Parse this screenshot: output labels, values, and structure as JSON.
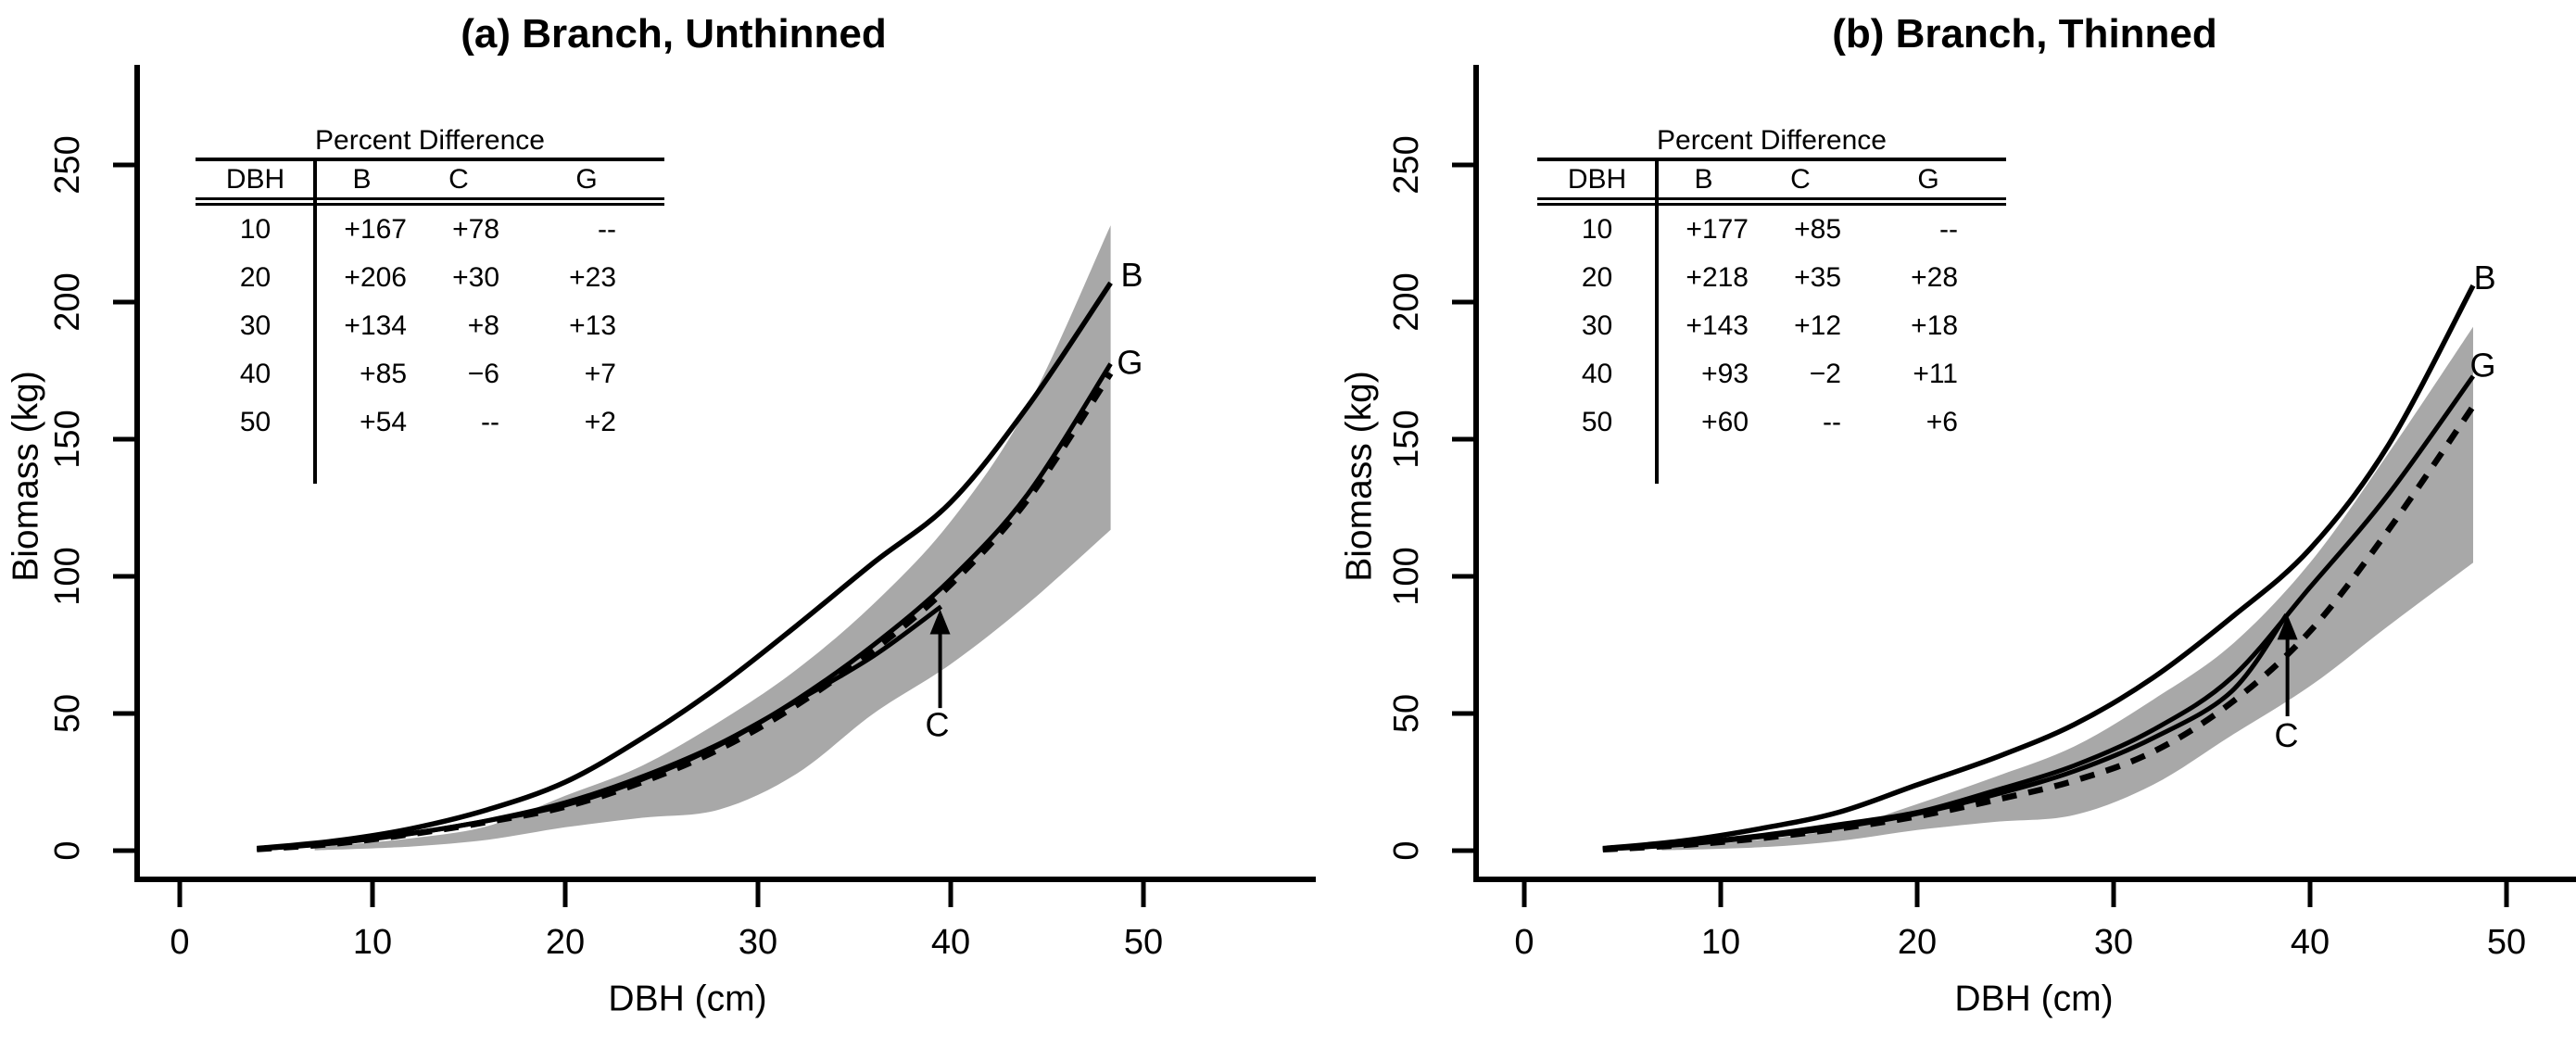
{
  "colors": {
    "background": "#ffffff",
    "ink": "#000000",
    "band": "#a8a8a8"
  },
  "chart_data": [
    {
      "type": "line",
      "panel": "a",
      "title": "(a) Branch, Unthinned",
      "xlabel": "DBH (cm)",
      "ylabel": "Biomass (kg)",
      "xticks": [
        0,
        10,
        20,
        30,
        40,
        50
      ],
      "yticks": [
        0,
        50,
        100,
        150,
        200,
        250
      ],
      "xlim": [
        -2,
        55
      ],
      "ylim": [
        -10,
        290
      ],
      "grid": false,
      "legend": "none",
      "band": {
        "name": "confidence-band",
        "x": [
          7,
          12,
          16,
          20,
          24,
          28,
          32,
          36,
          40,
          44,
          48.3
        ],
        "top": [
          1.2,
          4.5,
          9,
          20,
          31,
          47,
          66,
          90,
          120,
          162,
          228
        ],
        "bottom": [
          0.1,
          1.5,
          4,
          8.5,
          12,
          15,
          28,
          50,
          68,
          90,
          117
        ]
      },
      "series": [
        {
          "name": "G",
          "style": "solid",
          "width": 5,
          "x": [
            4,
            8,
            12,
            16,
            20,
            24,
            28,
            32,
            36,
            40,
            44,
            48.3
          ],
          "y": [
            0.6,
            2.7,
            6.2,
            10.9,
            16.6,
            26,
            38.5,
            55,
            75,
            99,
            130,
            177.5
          ]
        },
        {
          "name": "C",
          "style": "solid",
          "width": 5,
          "x": [
            4,
            8,
            12,
            16,
            20,
            24,
            28,
            32,
            36,
            39.5
          ],
          "y": [
            0.6,
            2.8,
            6.3,
            11,
            17.5,
            27,
            39,
            54.5,
            71,
            89
          ]
        },
        {
          "name": "reference",
          "style": "dashed",
          "width": 6.5,
          "x": [
            4,
            8,
            12,
            16,
            20,
            24,
            28,
            32,
            36,
            40,
            44,
            48.3
          ],
          "y": [
            0.5,
            2.5,
            6,
            10.5,
            16,
            25,
            37,
            53,
            73,
            97,
            128,
            174
          ]
        },
        {
          "name": "B",
          "style": "solid",
          "width": 5.5,
          "x": [
            4,
            8,
            12,
            16,
            20,
            24,
            28,
            32,
            36,
            40,
            44,
            48.3
          ],
          "y": [
            0.8,
            3.5,
            8,
            15,
            25,
            41,
            60,
            82,
            105,
            127,
            162,
            207
          ]
        }
      ],
      "point_labels": [
        {
          "text": "B",
          "x": 49.4,
          "y": 210
        },
        {
          "text": "G",
          "x": 49.3,
          "y": 178
        },
        {
          "text": "C",
          "x": 39.3,
          "y": 46
        }
      ],
      "arrow": {
        "x": 39.45,
        "y_from": 52,
        "y_to": 79,
        "tip": 88
      },
      "table": {
        "title": "Percent Difference",
        "columns": [
          "DBH",
          "B",
          "C",
          "G"
        ],
        "rows": [
          [
            "10",
            "+167",
            "+78",
            "--"
          ],
          [
            "20",
            "+206",
            "+30",
            "+23"
          ],
          [
            "30",
            "+134",
            "+8",
            "+13"
          ],
          [
            "40",
            "+85",
            "−6",
            "+7"
          ],
          [
            "50",
            "+54",
            "--",
            "+2"
          ]
        ]
      }
    },
    {
      "type": "line",
      "panel": "b",
      "title": "(b) Branch, Thinned",
      "xlabel": "DBH (cm)",
      "ylabel": "Biomass (kg)",
      "xticks": [
        0,
        10,
        20,
        30,
        40,
        50
      ],
      "yticks": [
        0,
        50,
        100,
        150,
        200,
        250
      ],
      "xlim": [
        -2,
        55
      ],
      "ylim": [
        -10,
        290
      ],
      "grid": false,
      "legend": "none",
      "band": {
        "name": "confidence-band",
        "x": [
          7,
          12,
          16,
          20,
          24,
          28,
          32,
          36,
          40,
          44,
          48.3
        ],
        "top": [
          1,
          4,
          8,
          17,
          27,
          38,
          55,
          75,
          105,
          145,
          191
        ],
        "bottom": [
          0.1,
          1.2,
          3.5,
          7.5,
          10.5,
          13,
          24,
          42,
          60,
          82,
          105
        ]
      },
      "series": [
        {
          "name": "G",
          "style": "solid",
          "width": 5,
          "x": [
            4,
            8,
            12,
            16,
            20,
            24,
            28,
            32,
            36,
            40,
            44,
            48.3
          ],
          "y": [
            0.5,
            2.5,
            5.5,
            9.5,
            14,
            22,
            31,
            44,
            63,
            96,
            130,
            173
          ]
        },
        {
          "name": "C",
          "style": "solid",
          "width": 5,
          "x": [
            4,
            8,
            12,
            16,
            20,
            24,
            28,
            32,
            36,
            38.8
          ],
          "y": [
            0.5,
            2.2,
            5,
            8.5,
            13.5,
            20.5,
            29,
            41,
            58,
            86
          ]
        },
        {
          "name": "reference",
          "style": "dashed",
          "width": 6.5,
          "x": [
            4,
            8,
            12,
            16,
            20,
            24,
            28,
            32,
            36,
            40,
            44,
            48.3
          ],
          "y": [
            0.4,
            2,
            4.5,
            8,
            12.5,
            18.5,
            25.5,
            36,
            54,
            80,
            117,
            162
          ]
        },
        {
          "name": "B",
          "style": "solid",
          "width": 5.5,
          "x": [
            4,
            8,
            12,
            16,
            20,
            24,
            28,
            32,
            36,
            40,
            44,
            48.3
          ],
          "y": [
            0.8,
            3.5,
            8,
            14,
            24,
            34,
            46,
            63,
            85,
            110,
            148,
            206
          ]
        }
      ],
      "point_labels": [
        {
          "text": "B",
          "x": 48.9,
          "y": 209
        },
        {
          "text": "G",
          "x": 48.8,
          "y": 177
        },
        {
          "text": "C",
          "x": 38.8,
          "y": 42
        }
      ],
      "arrow": {
        "x": 38.85,
        "y_from": 49,
        "y_to": 78,
        "tip": 86
      },
      "table": {
        "title": "Percent Difference",
        "columns": [
          "DBH",
          "B",
          "C",
          "G"
        ],
        "rows": [
          [
            "10",
            "+177",
            "+85",
            "--"
          ],
          [
            "20",
            "+218",
            "+35",
            "+28"
          ],
          [
            "30",
            "+143",
            "+12",
            "+18"
          ],
          [
            "40",
            "+93",
            "−2",
            "+11"
          ],
          [
            "50",
            "+60",
            "--",
            "+6"
          ]
        ]
      }
    }
  ]
}
